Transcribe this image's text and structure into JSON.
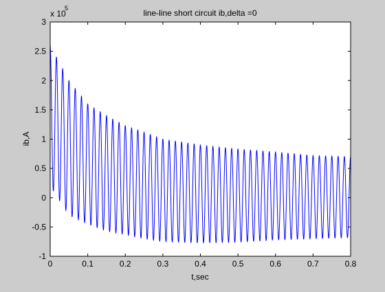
{
  "chart_data": {
    "type": "line",
    "title": "line-line short circuit ib,delta =0",
    "xlabel": "t,sec",
    "ylabel": "ib,A",
    "y_scale_label": {
      "base": "x 10",
      "exponent": "5"
    },
    "y_multiplier": 100000,
    "xlim": [
      0,
      0.8
    ],
    "ylim": [
      -1,
      3
    ],
    "xticks": [
      0,
      0.1,
      0.2,
      0.3,
      0.4,
      0.5,
      0.6,
      0.7,
      0.8
    ],
    "xtick_labels": [
      "0",
      "0.1",
      "0.2",
      "0.3",
      "0.4",
      "0.5",
      "0.6",
      "0.7",
      "0.8"
    ],
    "yticks": [
      -1,
      -0.5,
      0,
      0.5,
      1,
      1.5,
      2,
      2.5,
      3
    ],
    "ytick_labels": [
      "-1",
      "-0.5",
      "0",
      "0.5",
      "1",
      "1.5",
      "2",
      "2.5",
      "3"
    ],
    "grid": false,
    "series": [
      {
        "color": "#0000ff",
        "frequency_hz": 60,
        "envelope_points": [
          {
            "t": 0.0,
            "peak": 2.6,
            "trough": 0.2
          },
          {
            "t": 0.05,
            "peak": 2.0,
            "trough": -0.3
          },
          {
            "t": 0.1,
            "peak": 1.6,
            "trough": -0.45
          },
          {
            "t": 0.15,
            "peak": 1.4,
            "trough": -0.57
          },
          {
            "t": 0.2,
            "peak": 1.23,
            "trough": -0.63
          },
          {
            "t": 0.25,
            "peak": 1.12,
            "trough": -0.7
          },
          {
            "t": 0.3,
            "peak": 1.0,
            "trough": -0.75
          },
          {
            "t": 0.4,
            "peak": 0.9,
            "trough": -0.77
          },
          {
            "t": 0.5,
            "peak": 0.83,
            "trough": -0.76
          },
          {
            "t": 0.6,
            "peak": 0.78,
            "trough": -0.72
          },
          {
            "t": 0.7,
            "peak": 0.72,
            "trough": -0.7
          },
          {
            "t": 0.8,
            "peak": 0.7,
            "trough": -0.68
          }
        ]
      }
    ]
  }
}
